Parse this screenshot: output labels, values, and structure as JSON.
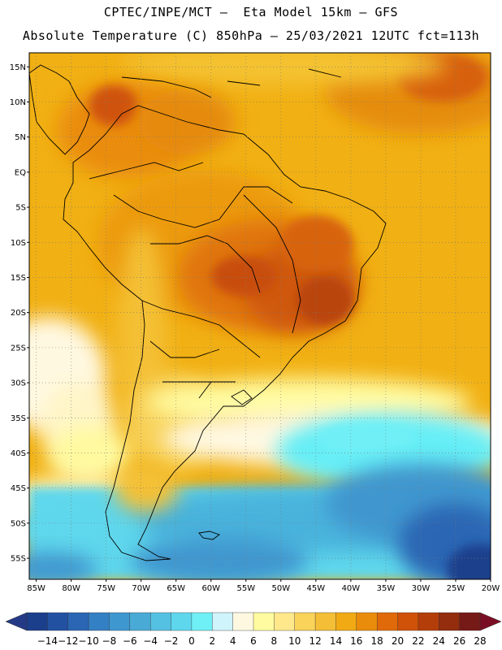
{
  "header": {
    "line1": "CPTEC/INPE/MCT –  Eta Model 15km – GFS",
    "line2": "Absolute Temperature (C) 850hPa – 25/03/2021 12UTC fct=113h"
  },
  "map": {
    "lon_range": [
      -86,
      -20
    ],
    "lat_range": [
      -58,
      17
    ],
    "lat_labels": [
      "15N",
      "10N",
      "5N",
      "EQ",
      "5S",
      "10S",
      "15S",
      "20S",
      "25S",
      "30S",
      "35S",
      "40S",
      "45S",
      "50S",
      "55S"
    ],
    "lat_values": [
      15,
      10,
      5,
      0,
      -5,
      -10,
      -15,
      -20,
      -25,
      -30,
      -35,
      -40,
      -45,
      -50,
      -55
    ],
    "lon_labels": [
      "85W",
      "80W",
      "75W",
      "70W",
      "65W",
      "60W",
      "55W",
      "50W",
      "45W",
      "40W",
      "35W",
      "30W",
      "25W",
      "20W"
    ],
    "lon_values": [
      -85,
      -80,
      -75,
      -70,
      -65,
      -60,
      -55,
      -50,
      -45,
      -40,
      -35,
      -30,
      -25,
      -20
    ],
    "ocean_color": "#f1b013",
    "land_base_color": "#f0a710"
  },
  "colorbar": {
    "labels": [
      "-14",
      "-12",
      "-10",
      "-8",
      "-6",
      "-4",
      "-2",
      "0",
      "2",
      "4",
      "6",
      "8",
      "10",
      "12",
      "14",
      "16",
      "18",
      "20",
      "22",
      "24",
      "26",
      "28"
    ],
    "colors": [
      "#1c3f8c",
      "#2351a2",
      "#2a66b4",
      "#3480c4",
      "#3f97cf",
      "#4aaad6",
      "#55c1e2",
      "#5ed7ec",
      "#6ff0f6",
      "#cff4fb",
      "#fff8e1",
      "#fffba0",
      "#ffe88c",
      "#f9d35a",
      "#f4bf36",
      "#f1aa13",
      "#ea8c0b",
      "#e06a09",
      "#cf5208",
      "#b43e0a",
      "#942c0e",
      "#761a17"
    ],
    "low_arrow_color": "#253a86",
    "high_arrow_color": "#7a0d23"
  }
}
